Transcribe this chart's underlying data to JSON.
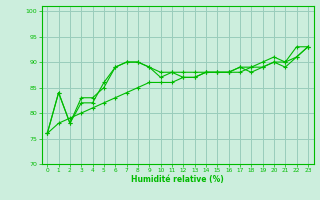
{
  "xlabel": "Humidité relative (%)",
  "bg_color": "#cceedd",
  "grid_color": "#99ccbb",
  "line_color": "#00bb00",
  "xlim": [
    -0.5,
    23.5
  ],
  "ylim": [
    70,
    101
  ],
  "yticks": [
    70,
    75,
    80,
    85,
    90,
    95,
    100
  ],
  "xticks": [
    0,
    1,
    2,
    3,
    4,
    5,
    6,
    7,
    8,
    9,
    10,
    11,
    12,
    13,
    14,
    15,
    16,
    17,
    18,
    19,
    20,
    21,
    22,
    23
  ],
  "series": [
    [
      76,
      84,
      78,
      82,
      82,
      86,
      89,
      90,
      90,
      89,
      87,
      88,
      87,
      87,
      88,
      88,
      88,
      89,
      88,
      89,
      90,
      89,
      91,
      93
    ],
    [
      76,
      84,
      78,
      83,
      83,
      85,
      89,
      90,
      90,
      89,
      88,
      88,
      88,
      88,
      88,
      88,
      88,
      89,
      89,
      90,
      91,
      90,
      93,
      93
    ],
    [
      76,
      78,
      79,
      80,
      81,
      82,
      83,
      84,
      85,
      86,
      86,
      86,
      87,
      87,
      88,
      88,
      88,
      88,
      89,
      89,
      90,
      90,
      91,
      93
    ]
  ]
}
